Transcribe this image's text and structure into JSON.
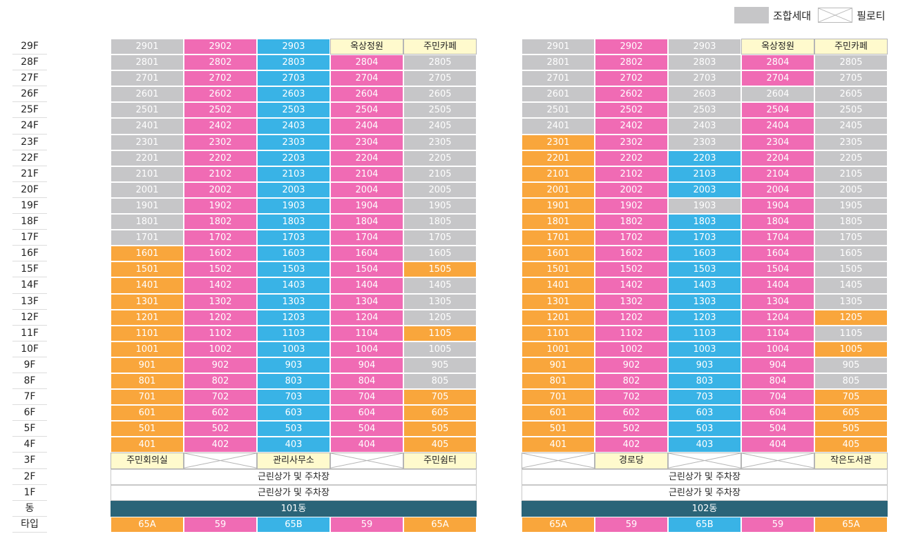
{
  "legend": {
    "union_label": "조합세대",
    "piloti_label": "필로티"
  },
  "floor_labels": [
    "29F",
    "28F",
    "27F",
    "26F",
    "25F",
    "24F",
    "23F",
    "22F",
    "21F",
    "20F",
    "19F",
    "18F",
    "17F",
    "16F",
    "15F",
    "14F",
    "13F",
    "12F",
    "11F",
    "10F",
    "9F",
    "8F",
    "7F",
    "6F",
    "5F",
    "4F",
    "3F",
    "2F",
    "1F",
    "동",
    "타입"
  ],
  "colors": {
    "gray": "#c6c6c8",
    "pink": "#f06bb4",
    "blue": "#39b3e6",
    "orange": "#f9a63c",
    "facility": "#fffacd",
    "dong": "#2b6478"
  },
  "buildings": [
    {
      "name": "101동",
      "unit_rows": [
        [
          [
            "2901",
            "g"
          ],
          [
            "2902",
            "p"
          ],
          [
            "2903",
            "b"
          ],
          [
            "옥상정원",
            "f"
          ],
          [
            "주민카페",
            "f"
          ]
        ],
        [
          [
            "2801",
            "g"
          ],
          [
            "2802",
            "p"
          ],
          [
            "2803",
            "b"
          ],
          [
            "2804",
            "p"
          ],
          [
            "2805",
            "g"
          ]
        ],
        [
          [
            "2701",
            "g"
          ],
          [
            "2702",
            "p"
          ],
          [
            "2703",
            "b"
          ],
          [
            "2704",
            "p"
          ],
          [
            "2705",
            "g"
          ]
        ],
        [
          [
            "2601",
            "g"
          ],
          [
            "2602",
            "p"
          ],
          [
            "2603",
            "b"
          ],
          [
            "2604",
            "p"
          ],
          [
            "2605",
            "g"
          ]
        ],
        [
          [
            "2501",
            "g"
          ],
          [
            "2502",
            "p"
          ],
          [
            "2503",
            "b"
          ],
          [
            "2504",
            "p"
          ],
          [
            "2505",
            "g"
          ]
        ],
        [
          [
            "2401",
            "g"
          ],
          [
            "2402",
            "p"
          ],
          [
            "2403",
            "b"
          ],
          [
            "2404",
            "p"
          ],
          [
            "2405",
            "g"
          ]
        ],
        [
          [
            "2301",
            "g"
          ],
          [
            "2302",
            "p"
          ],
          [
            "2303",
            "b"
          ],
          [
            "2304",
            "p"
          ],
          [
            "2305",
            "g"
          ]
        ],
        [
          [
            "2201",
            "g"
          ],
          [
            "2202",
            "p"
          ],
          [
            "2203",
            "b"
          ],
          [
            "2204",
            "p"
          ],
          [
            "2205",
            "g"
          ]
        ],
        [
          [
            "2101",
            "g"
          ],
          [
            "2102",
            "p"
          ],
          [
            "2103",
            "b"
          ],
          [
            "2104",
            "p"
          ],
          [
            "2105",
            "g"
          ]
        ],
        [
          [
            "2001",
            "g"
          ],
          [
            "2002",
            "p"
          ],
          [
            "2003",
            "b"
          ],
          [
            "2004",
            "p"
          ],
          [
            "2005",
            "g"
          ]
        ],
        [
          [
            "1901",
            "g"
          ],
          [
            "1902",
            "p"
          ],
          [
            "1903",
            "b"
          ],
          [
            "1904",
            "p"
          ],
          [
            "1905",
            "g"
          ]
        ],
        [
          [
            "1801",
            "g"
          ],
          [
            "1802",
            "p"
          ],
          [
            "1803",
            "b"
          ],
          [
            "1804",
            "p"
          ],
          [
            "1805",
            "g"
          ]
        ],
        [
          [
            "1701",
            "g"
          ],
          [
            "1702",
            "p"
          ],
          [
            "1703",
            "b"
          ],
          [
            "1704",
            "p"
          ],
          [
            "1705",
            "g"
          ]
        ],
        [
          [
            "1601",
            "o"
          ],
          [
            "1602",
            "p"
          ],
          [
            "1603",
            "b"
          ],
          [
            "1604",
            "p"
          ],
          [
            "1605",
            "g"
          ]
        ],
        [
          [
            "1501",
            "o"
          ],
          [
            "1502",
            "p"
          ],
          [
            "1503",
            "b"
          ],
          [
            "1504",
            "p"
          ],
          [
            "1505",
            "o"
          ]
        ],
        [
          [
            "1401",
            "o"
          ],
          [
            "1402",
            "p"
          ],
          [
            "1403",
            "b"
          ],
          [
            "1404",
            "p"
          ],
          [
            "1405",
            "g"
          ]
        ],
        [
          [
            "1301",
            "o"
          ],
          [
            "1302",
            "p"
          ],
          [
            "1303",
            "b"
          ],
          [
            "1304",
            "p"
          ],
          [
            "1305",
            "g"
          ]
        ],
        [
          [
            "1201",
            "o"
          ],
          [
            "1202",
            "p"
          ],
          [
            "1203",
            "b"
          ],
          [
            "1204",
            "p"
          ],
          [
            "1205",
            "g"
          ]
        ],
        [
          [
            "1101",
            "o"
          ],
          [
            "1102",
            "p"
          ],
          [
            "1103",
            "b"
          ],
          [
            "1104",
            "p"
          ],
          [
            "1105",
            "o"
          ]
        ],
        [
          [
            "1001",
            "o"
          ],
          [
            "1002",
            "p"
          ],
          [
            "1003",
            "b"
          ],
          [
            "1004",
            "p"
          ],
          [
            "1005",
            "g"
          ]
        ],
        [
          [
            "901",
            "o"
          ],
          [
            "902",
            "p"
          ],
          [
            "903",
            "b"
          ],
          [
            "904",
            "p"
          ],
          [
            "905",
            "g"
          ]
        ],
        [
          [
            "801",
            "o"
          ],
          [
            "802",
            "p"
          ],
          [
            "803",
            "b"
          ],
          [
            "804",
            "p"
          ],
          [
            "805",
            "g"
          ]
        ],
        [
          [
            "701",
            "o"
          ],
          [
            "702",
            "p"
          ],
          [
            "703",
            "b"
          ],
          [
            "704",
            "p"
          ],
          [
            "705",
            "o"
          ]
        ],
        [
          [
            "601",
            "o"
          ],
          [
            "602",
            "p"
          ],
          [
            "603",
            "b"
          ],
          [
            "604",
            "p"
          ],
          [
            "605",
            "o"
          ]
        ],
        [
          [
            "501",
            "o"
          ],
          [
            "502",
            "p"
          ],
          [
            "503",
            "b"
          ],
          [
            "504",
            "p"
          ],
          [
            "505",
            "o"
          ]
        ],
        [
          [
            "401",
            "o"
          ],
          [
            "402",
            "p"
          ],
          [
            "403",
            "b"
          ],
          [
            "404",
            "p"
          ],
          [
            "405",
            "o"
          ]
        ],
        [
          [
            "주민회의실",
            "f"
          ],
          [
            "",
            "x"
          ],
          [
            "관리사무소",
            "f"
          ],
          [
            "",
            "x"
          ],
          [
            "주민쉼터",
            "f"
          ]
        ]
      ],
      "floor2": "근린상가 및 주차장",
      "floor1": "근린상가 및 주차장",
      "types": [
        [
          "65A",
          "o"
        ],
        [
          "59",
          "p"
        ],
        [
          "65B",
          "b"
        ],
        [
          "59",
          "p"
        ],
        [
          "65A",
          "o"
        ]
      ]
    },
    {
      "name": "102동",
      "unit_rows": [
        [
          [
            "2901",
            "g"
          ],
          [
            "2902",
            "p"
          ],
          [
            "2903",
            "g"
          ],
          [
            "옥상정원",
            "f"
          ],
          [
            "주민카페",
            "f"
          ]
        ],
        [
          [
            "2801",
            "g"
          ],
          [
            "2802",
            "p"
          ],
          [
            "2803",
            "g"
          ],
          [
            "2804",
            "p"
          ],
          [
            "2805",
            "g"
          ]
        ],
        [
          [
            "2701",
            "g"
          ],
          [
            "2702",
            "p"
          ],
          [
            "2703",
            "g"
          ],
          [
            "2704",
            "p"
          ],
          [
            "2705",
            "g"
          ]
        ],
        [
          [
            "2601",
            "g"
          ],
          [
            "2602",
            "p"
          ],
          [
            "2603",
            "g"
          ],
          [
            "2604",
            "g"
          ],
          [
            "2605",
            "g"
          ]
        ],
        [
          [
            "2501",
            "g"
          ],
          [
            "2502",
            "p"
          ],
          [
            "2503",
            "g"
          ],
          [
            "2504",
            "p"
          ],
          [
            "2505",
            "g"
          ]
        ],
        [
          [
            "2401",
            "g"
          ],
          [
            "2402",
            "p"
          ],
          [
            "2403",
            "g"
          ],
          [
            "2404",
            "p"
          ],
          [
            "2405",
            "g"
          ]
        ],
        [
          [
            "2301",
            "o"
          ],
          [
            "2302",
            "p"
          ],
          [
            "2303",
            "g"
          ],
          [
            "2304",
            "p"
          ],
          [
            "2305",
            "g"
          ]
        ],
        [
          [
            "2201",
            "o"
          ],
          [
            "2202",
            "p"
          ],
          [
            "2203",
            "b"
          ],
          [
            "2204",
            "p"
          ],
          [
            "2205",
            "g"
          ]
        ],
        [
          [
            "2101",
            "o"
          ],
          [
            "2102",
            "p"
          ],
          [
            "2103",
            "b"
          ],
          [
            "2104",
            "p"
          ],
          [
            "2105",
            "g"
          ]
        ],
        [
          [
            "2001",
            "o"
          ],
          [
            "2002",
            "p"
          ],
          [
            "2003",
            "b"
          ],
          [
            "2004",
            "p"
          ],
          [
            "2005",
            "g"
          ]
        ],
        [
          [
            "1901",
            "o"
          ],
          [
            "1902",
            "p"
          ],
          [
            "1903",
            "g"
          ],
          [
            "1904",
            "p"
          ],
          [
            "1905",
            "g"
          ]
        ],
        [
          [
            "1801",
            "o"
          ],
          [
            "1802",
            "p"
          ],
          [
            "1803",
            "b"
          ],
          [
            "1804",
            "p"
          ],
          [
            "1805",
            "g"
          ]
        ],
        [
          [
            "1701",
            "o"
          ],
          [
            "1702",
            "p"
          ],
          [
            "1703",
            "b"
          ],
          [
            "1704",
            "p"
          ],
          [
            "1705",
            "g"
          ]
        ],
        [
          [
            "1601",
            "o"
          ],
          [
            "1602",
            "p"
          ],
          [
            "1603",
            "b"
          ],
          [
            "1604",
            "p"
          ],
          [
            "1605",
            "g"
          ]
        ],
        [
          [
            "1501",
            "o"
          ],
          [
            "1502",
            "p"
          ],
          [
            "1503",
            "b"
          ],
          [
            "1504",
            "p"
          ],
          [
            "1505",
            "g"
          ]
        ],
        [
          [
            "1401",
            "o"
          ],
          [
            "1402",
            "p"
          ],
          [
            "1403",
            "b"
          ],
          [
            "1404",
            "p"
          ],
          [
            "1405",
            "g"
          ]
        ],
        [
          [
            "1301",
            "o"
          ],
          [
            "1302",
            "p"
          ],
          [
            "1303",
            "b"
          ],
          [
            "1304",
            "p"
          ],
          [
            "1305",
            "g"
          ]
        ],
        [
          [
            "1201",
            "o"
          ],
          [
            "1202",
            "p"
          ],
          [
            "1203",
            "b"
          ],
          [
            "1204",
            "p"
          ],
          [
            "1205",
            "o"
          ]
        ],
        [
          [
            "1101",
            "o"
          ],
          [
            "1102",
            "p"
          ],
          [
            "1103",
            "b"
          ],
          [
            "1104",
            "p"
          ],
          [
            "1105",
            "g"
          ]
        ],
        [
          [
            "1001",
            "o"
          ],
          [
            "1002",
            "p"
          ],
          [
            "1003",
            "b"
          ],
          [
            "1004",
            "p"
          ],
          [
            "1005",
            "o"
          ]
        ],
        [
          [
            "901",
            "o"
          ],
          [
            "902",
            "p"
          ],
          [
            "903",
            "b"
          ],
          [
            "904",
            "p"
          ],
          [
            "905",
            "g"
          ]
        ],
        [
          [
            "801",
            "o"
          ],
          [
            "802",
            "p"
          ],
          [
            "803",
            "b"
          ],
          [
            "804",
            "p"
          ],
          [
            "805",
            "g"
          ]
        ],
        [
          [
            "701",
            "o"
          ],
          [
            "702",
            "p"
          ],
          [
            "703",
            "b"
          ],
          [
            "704",
            "p"
          ],
          [
            "705",
            "o"
          ]
        ],
        [
          [
            "601",
            "o"
          ],
          [
            "602",
            "p"
          ],
          [
            "603",
            "b"
          ],
          [
            "604",
            "p"
          ],
          [
            "605",
            "o"
          ]
        ],
        [
          [
            "501",
            "o"
          ],
          [
            "502",
            "p"
          ],
          [
            "503",
            "b"
          ],
          [
            "504",
            "p"
          ],
          [
            "505",
            "o"
          ]
        ],
        [
          [
            "401",
            "o"
          ],
          [
            "402",
            "p"
          ],
          [
            "403",
            "b"
          ],
          [
            "404",
            "p"
          ],
          [
            "405",
            "o"
          ]
        ],
        [
          [
            "",
            "x"
          ],
          [
            "경로당",
            "f"
          ],
          [
            "",
            "x"
          ],
          [
            "",
            "x"
          ],
          [
            "작은도서관",
            "f"
          ]
        ]
      ],
      "floor2": "근린상가 및 주차장",
      "floor1": "근린상가 및 주차장",
      "types": [
        [
          "65A",
          "o"
        ],
        [
          "59",
          "p"
        ],
        [
          "65B",
          "b"
        ],
        [
          "59",
          "p"
        ],
        [
          "65A",
          "o"
        ]
      ]
    }
  ]
}
